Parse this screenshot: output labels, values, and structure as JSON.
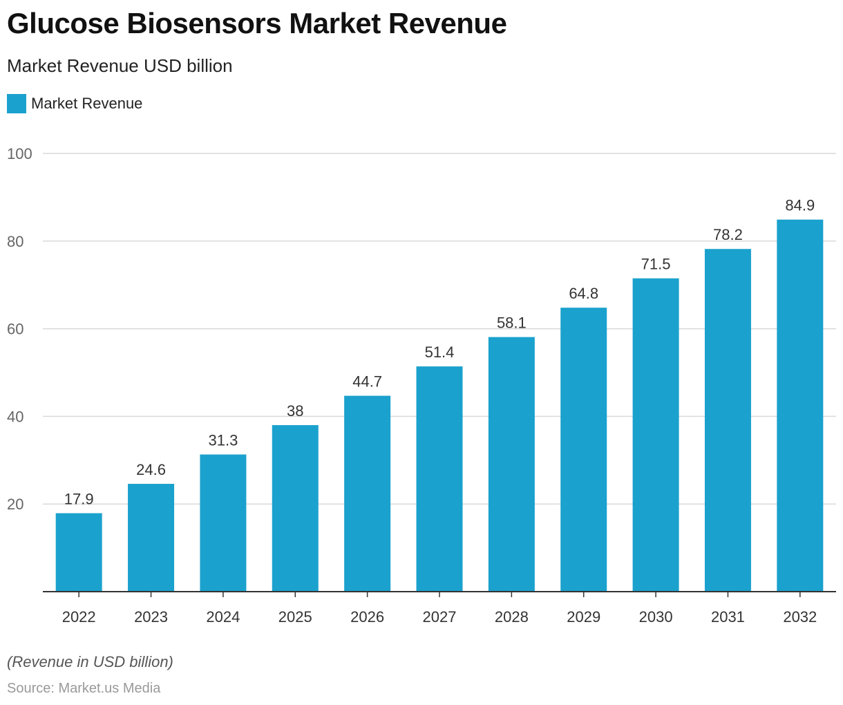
{
  "header": {
    "title": "Glucose Biosensors Market Revenue",
    "subtitle": "Market Revenue USD billion"
  },
  "legend": {
    "label": "Market Revenue",
    "color": "#1ba1cd"
  },
  "chart_data": {
    "type": "bar",
    "title": "Glucose Biosensors Market Revenue",
    "subtitle": "Market Revenue USD billion",
    "xlabel": "",
    "ylabel": "",
    "categories": [
      "2022",
      "2023",
      "2024",
      "2025",
      "2026",
      "2027",
      "2028",
      "2029",
      "2030",
      "2031",
      "2032"
    ],
    "series": [
      {
        "name": "Market Revenue",
        "color": "#1ba1cd",
        "values": [
          17.9,
          24.6,
          31.3,
          38,
          44.7,
          51.4,
          58.1,
          64.8,
          71.5,
          78.2,
          84.9
        ]
      }
    ],
    "value_labels": [
      "17.9",
      "24.6",
      "31.3",
      "38",
      "44.7",
      "51.4",
      "58.1",
      "64.8",
      "71.5",
      "78.2",
      "84.9"
    ],
    "ylim": [
      0,
      100
    ],
    "yticks": [
      20,
      40,
      60,
      80,
      100
    ],
    "grid": true,
    "legend_position": "top-left"
  },
  "footer": {
    "note": "(Revenue in USD billion)",
    "source": "Source: Market.us Media"
  }
}
